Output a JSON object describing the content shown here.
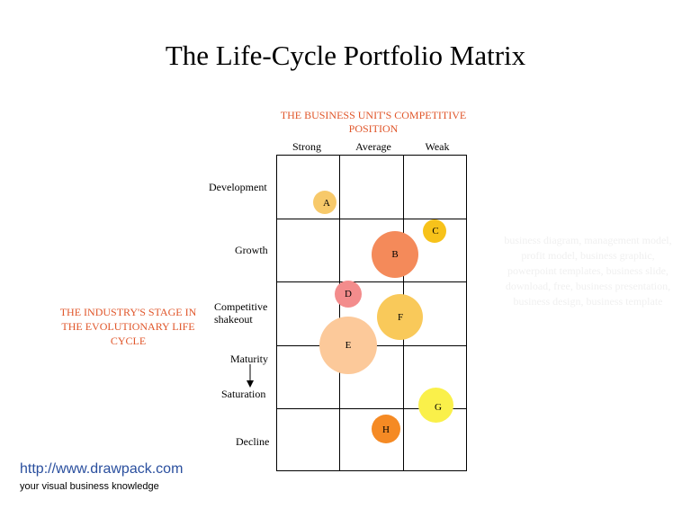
{
  "title": "The Life-Cycle Portfolio Matrix",
  "columns": {
    "header": "THE BUSINESS UNIT'S COMPETITIVE POSITION",
    "labels": [
      "Strong",
      "Average",
      "Weak"
    ]
  },
  "rows": {
    "header": "THE INDUSTRY'S STAGE IN THE EVOLUTIONARY LIFE CYCLE",
    "labels": [
      "Development",
      "Growth",
      "Competitive shakeout",
      "Maturity",
      "Saturation",
      "Decline"
    ]
  },
  "bubbles": [
    {
      "label": "A",
      "color": "#f7c96a"
    },
    {
      "label": "B",
      "color": "#f48a5a"
    },
    {
      "label": "C",
      "color": "#f7c21a"
    },
    {
      "label": "D",
      "color": "#f38c8c"
    },
    {
      "label": "E",
      "color": "#fcc99a"
    },
    {
      "label": "F",
      "color": "#f9c95a"
    },
    {
      "label": "G",
      "color": "#faf04a"
    },
    {
      "label": "H",
      "color": "#f58a24"
    }
  ],
  "watermark": "business diagram, management model, profit model, business graphic, powerpoint templates, business slide, download, free, business presentation, business design, business template",
  "footer": {
    "url": "http://www.drawpack.com",
    "tagline": "your visual business knowledge"
  }
}
